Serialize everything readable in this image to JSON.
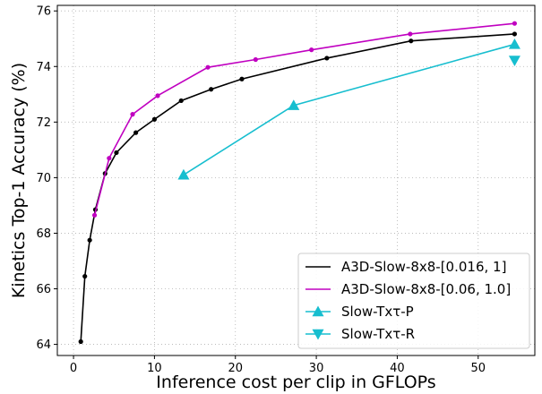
{
  "chart_data": {
    "type": "line",
    "title": "",
    "xlabel": "Inference cost per clip in GFLOPs",
    "ylabel": "Kinetics Top-1 Accuracy (%)",
    "xlim": [
      -2,
      57
    ],
    "ylim": [
      63.6,
      76.2
    ],
    "xticks": [
      0,
      10,
      20,
      30,
      40,
      50
    ],
    "yticks": [
      64,
      66,
      68,
      70,
      72,
      74,
      76
    ],
    "grid": true,
    "legend_position": "bottom-right",
    "series": [
      {
        "name": "A3D-Slow-8x8-[0.016, 1]",
        "color": "#000000",
        "marker": "dot",
        "x": [
          0.9,
          1.4,
          2.0,
          2.7,
          3.9,
          5.3,
          7.7,
          10.0,
          13.3,
          17.0,
          20.8,
          31.3,
          41.7,
          54.5
        ],
        "y": [
          64.1,
          66.45,
          67.75,
          68.85,
          70.15,
          70.9,
          71.62,
          72.1,
          72.77,
          73.18,
          73.55,
          74.3,
          74.92,
          75.17
        ]
      },
      {
        "name": "A3D-Slow-8x8-[0.06, 1.0]",
        "color": "#c000c0",
        "marker": "dot",
        "x": [
          2.6,
          4.4,
          7.3,
          10.4,
          16.6,
          22.5,
          29.4,
          41.6,
          54.5
        ],
        "y": [
          68.65,
          70.7,
          72.28,
          72.95,
          73.97,
          74.25,
          74.6,
          75.17,
          75.55
        ]
      },
      {
        "name": "Slow-Txτ-P",
        "color": "#17becf",
        "marker": "triangle-up",
        "x": [
          13.6,
          27.2,
          54.5
        ],
        "y": [
          70.1,
          72.6,
          74.8
        ]
      },
      {
        "name": "Slow-Txτ-R",
        "color": "#17becf",
        "marker": "triangle-down",
        "x": [
          54.5
        ],
        "y": [
          74.22
        ]
      }
    ]
  }
}
